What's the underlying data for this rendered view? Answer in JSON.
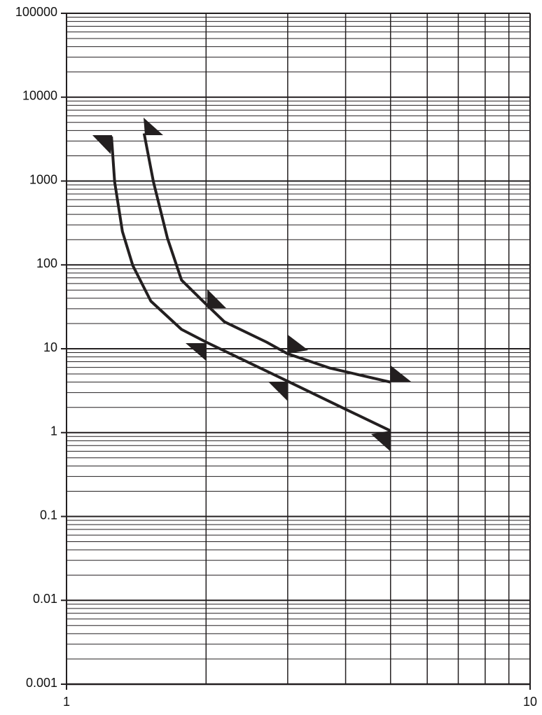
{
  "chart_data": {
    "type": "line",
    "xlog": true,
    "ylog": true,
    "grid": true,
    "xlim": [
      1,
      10
    ],
    "xticks": [
      1,
      10
    ],
    "ylim": [
      0.001,
      100000
    ],
    "yticks": [
      0.001,
      0.01,
      0.1,
      1,
      10,
      100,
      1000,
      10000,
      100000
    ],
    "series": [
      {
        "color": "#231f20",
        "x": [
          1.47,
          1.54,
          1.65,
          1.77,
          2,
          2.19,
          2.7,
          3,
          3.69,
          5
        ],
        "values": [
          3700,
          980,
          210,
          66,
          34,
          21,
          12,
          8.7,
          5.9,
          4
        ]
      },
      {
        "color": "#231f20",
        "x": [
          1.25,
          1.27,
          1.32,
          1.39,
          1.52,
          1.77,
          2,
          3,
          4,
          5
        ],
        "values": [
          3400,
          980,
          250,
          98,
          37,
          17,
          12,
          4.1,
          1.9,
          1.05
        ]
      }
    ]
  }
}
